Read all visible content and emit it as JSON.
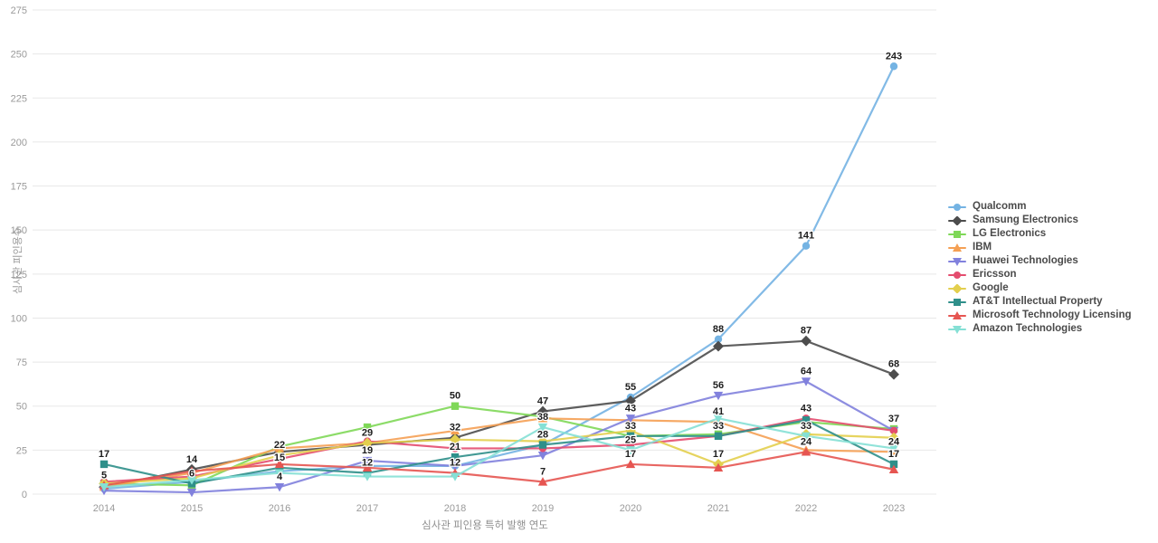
{
  "chart_data": {
    "type": "line",
    "title": "",
    "xlabel": "심사관 피인용 특허 발행 연도",
    "ylabel": "심사관 피인용수",
    "x": [
      2014,
      2015,
      2016,
      2017,
      2018,
      2019,
      2020,
      2021,
      2022,
      2023
    ],
    "ylim": [
      0,
      275
    ],
    "ytick_step": 25,
    "grid": true,
    "legend_position": "right",
    "series": [
      {
        "name": "Qualcomm",
        "color": "#74b3e3",
        "marker": "circle",
        "values": [
          3,
          7,
          13,
          16,
          16,
          28,
          55,
          88,
          141,
          243
        ],
        "labeled_years": [
          2020,
          2021,
          2022,
          2023
        ]
      },
      {
        "name": "Samsung Electronics",
        "color": "#4d4d4d",
        "marker": "diamond",
        "values": [
          4,
          14,
          24,
          28,
          32,
          47,
          53,
          84,
          87,
          68
        ],
        "labeled_years": [
          2015,
          2018,
          2019,
          2022,
          2023
        ]
      },
      {
        "name": "LG Electronics",
        "color": "#7fd858",
        "marker": "square",
        "values": [
          6,
          5,
          27,
          38,
          50,
          44,
          33,
          34,
          41,
          37
        ],
        "labeled_years": [
          2018,
          2023
        ]
      },
      {
        "name": "IBM",
        "color": "#f5a054",
        "marker": "triangle-up",
        "values": [
          4,
          12,
          26,
          29,
          36,
          43,
          42,
          41,
          25,
          24
        ],
        "labeled_years": [
          2017,
          2021,
          2023
        ]
      },
      {
        "name": "Huawei Technologies",
        "color": "#8181dd",
        "marker": "triangle-down",
        "values": [
          2,
          1,
          4,
          19,
          16,
          22,
          43,
          56,
          64,
          36
        ],
        "labeled_years": [
          2016,
          2017,
          2020,
          2021,
          2022
        ]
      },
      {
        "name": "Ericsson",
        "color": "#e44d6f",
        "marker": "circle",
        "values": [
          7,
          10,
          20,
          30,
          26,
          26,
          28,
          33,
          43,
          36
        ],
        "labeled_years": [
          2022
        ]
      },
      {
        "name": "Google",
        "color": "#e3cf4e",
        "marker": "diamond",
        "values": [
          6,
          9,
          22,
          29,
          31,
          30,
          36,
          17,
          34,
          32
        ],
        "labeled_years": [
          2016,
          2021
        ]
      },
      {
        "name": "AT&T Intellectual Property",
        "color": "#2f8f8a",
        "marker": "square",
        "values": [
          17,
          6,
          15,
          12,
          21,
          28,
          33,
          33,
          42,
          17
        ],
        "labeled_years": [
          2014,
          2015,
          2016,
          2017,
          2018,
          2019,
          2020,
          2021,
          2023
        ]
      },
      {
        "name": "Microsoft Technology Licensing",
        "color": "#e65551",
        "marker": "triangle-up",
        "values": [
          5,
          13,
          17,
          15,
          12,
          7,
          17,
          15,
          24,
          14
        ],
        "labeled_years": [
          2014,
          2018,
          2019,
          2020,
          2022
        ]
      },
      {
        "name": "Amazon Technologies",
        "color": "#85e0d5",
        "marker": "triangle-down",
        "values": [
          4,
          8,
          12,
          10,
          10,
          38,
          25,
          43,
          33,
          26
        ],
        "labeled_years": [
          2019,
          2020,
          2022
        ]
      }
    ]
  },
  "axes": {
    "x_tick_labels": [
      "2014",
      "2015",
      "2016",
      "2017",
      "2018",
      "2019",
      "2020",
      "2021",
      "2022",
      "2023"
    ],
    "y_tick_labels": [
      "0",
      "25",
      "50",
      "75",
      "100",
      "125",
      "150",
      "175",
      "200",
      "225",
      "250",
      "275"
    ]
  },
  "style": {
    "grid_color": "#e8e8e8",
    "background": "#ffffff",
    "tick_color": "#9a9a9a",
    "label_color": "#1d1d1d"
  }
}
